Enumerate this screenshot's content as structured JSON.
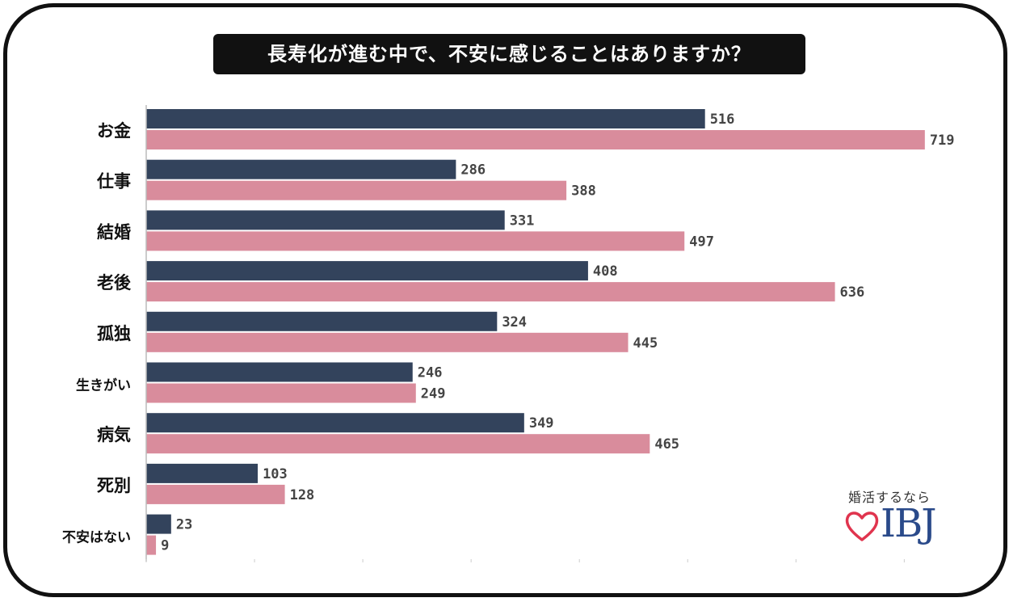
{
  "chart_data": {
    "type": "bar",
    "orientation": "horizontal",
    "title": "長寿化が進む中で、不安に感じることはありますか？",
    "categories": [
      "お金",
      "仕事",
      "結婚",
      "老後",
      "孤独",
      "生きがい",
      "病気",
      "死別",
      "不安はない"
    ],
    "series": [
      {
        "values": [
          516,
          286,
          331,
          408,
          324,
          246,
          349,
          103,
          23
        ],
        "color": "#33435c"
      },
      {
        "values": [
          719,
          388,
          497,
          636,
          445,
          249,
          465,
          128,
          9
        ],
        "color": "#d98c9c"
      }
    ],
    "xlim": [
      0,
      700
    ],
    "grid": false,
    "legend": "none"
  },
  "logo": {
    "tagline": "婚活するなら",
    "mark": "IBJ",
    "heart_color": "#e0344e",
    "mark_color": "#2a4a8a"
  }
}
